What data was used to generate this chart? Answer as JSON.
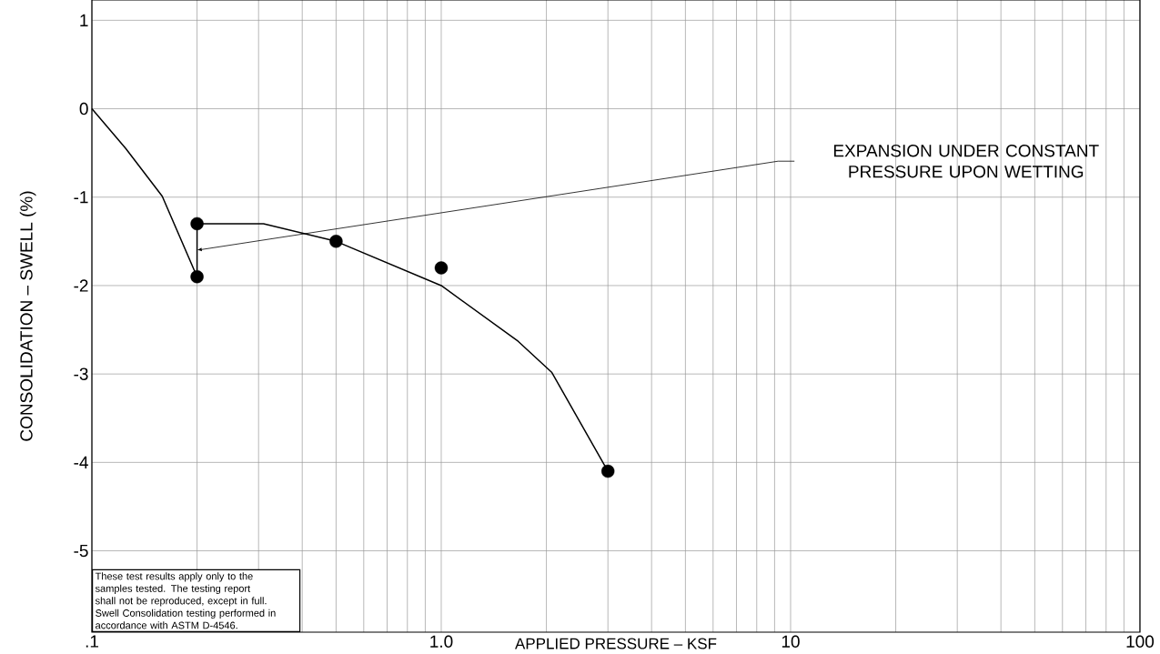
{
  "chart_data": {
    "type": "scatter",
    "xlabel": "APPLIED PRESSURE – KSF",
    "ylabel": "CONSOLIDATION – SWELL   (%)",
    "log": "x",
    "xlim": [
      0.1,
      100
    ],
    "ylim": [
      -5.92,
      1.23
    ],
    "xticks": [
      {
        "value": 0.1,
        "label": ".1"
      },
      {
        "value": 1,
        "label": "1.0"
      },
      {
        "value": 10,
        "label": "10"
      },
      {
        "value": 100,
        "label": "100"
      }
    ],
    "yticks": [
      1,
      0,
      -1,
      -2,
      -3,
      -4,
      -5
    ],
    "grid": true,
    "series": [
      {
        "color": "#000000",
        "marker": "circle",
        "x": [
          0.2,
          0.2,
          0.5,
          1.0,
          3.0
        ],
        "values": [
          -1.3,
          -1.9,
          -1.5,
          -1.8,
          -4.1
        ]
      },
      {
        "type": "line",
        "color": "#000000",
        "marker": "none",
        "line_style": "solid",
        "x": [
          0.1,
          0.125,
          0.159,
          0.2,
          0.2,
          0.31,
          0.5,
          1.0,
          1.66,
          2.07,
          3.0
        ],
        "values": [
          0,
          -0.45,
          -0.99,
          -1.9,
          -1.3,
          -1.3,
          -1.5,
          -2.0,
          -2.63,
          -2.98,
          -4.1
        ]
      }
    ],
    "annotations": [
      "EXPANSION UNDER CONSTANT PRESSURE UPON WETTING",
      "These test results apply only to the samples tested. The testing report shall not be reproduced, except in full. Swell Consolidation testing performed in accordance with ASTM D-4546."
    ]
  }
}
